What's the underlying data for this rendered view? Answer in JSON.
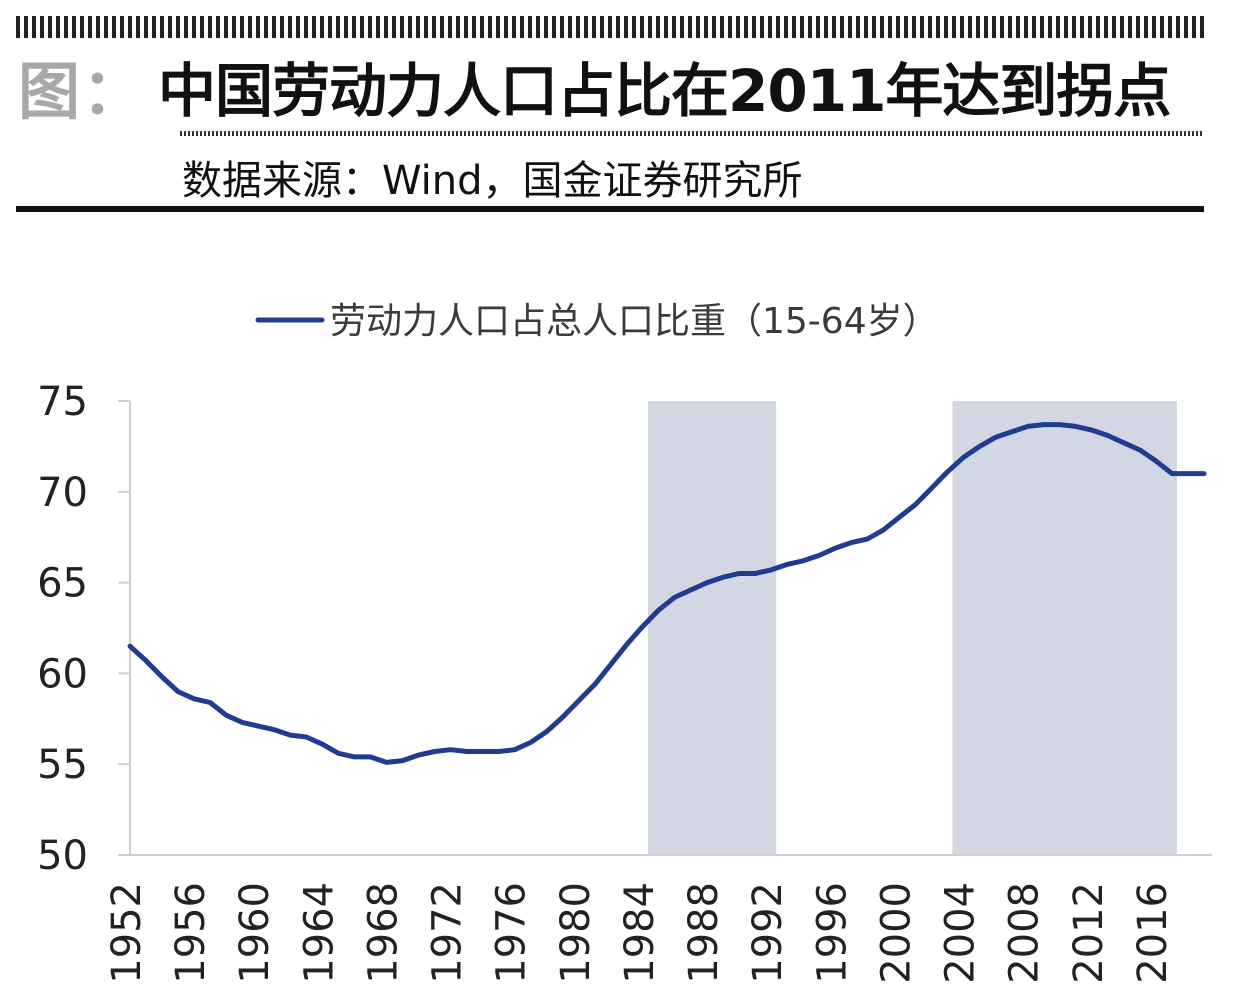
{
  "header": {
    "fig_label": "图：",
    "title": "中国劳动力人口占比在2011年达到拐点",
    "source": "数据来源：Wind，国金证券研究所"
  },
  "colors": {
    "line": "#1f3c91",
    "shade": "#d3d6e3",
    "axis": "#cfcfcf"
  },
  "chart_data": {
    "type": "line",
    "title": "",
    "xlabel": "",
    "ylabel": "",
    "legend": "top-center",
    "ylim": [
      50,
      75
    ],
    "xlim": [
      1952,
      2019
    ],
    "yticks": [
      "75",
      "70",
      "65",
      "60",
      "55",
      "50"
    ],
    "xticks": [
      "1952",
      "1956",
      "1960",
      "1964",
      "1968",
      "1972",
      "1976",
      "1980",
      "1984",
      "1988",
      "1992",
      "1996",
      "2000",
      "2004",
      "2008",
      "2012",
      "2016"
    ],
    "shaded_ranges": [
      [
        1984,
        1992
      ],
      [
        2003,
        2017
      ]
    ],
    "series": [
      {
        "name": "劳动力人口占总人口比重（15-64岁）",
        "x": [
          1952,
          1953,
          1954,
          1955,
          1956,
          1957,
          1958,
          1959,
          1960,
          1961,
          1962,
          1963,
          1964,
          1965,
          1966,
          1967,
          1968,
          1969,
          1970,
          1971,
          1972,
          1973,
          1974,
          1975,
          1976,
          1977,
          1978,
          1979,
          1980,
          1981,
          1982,
          1983,
          1984,
          1985,
          1986,
          1987,
          1988,
          1989,
          1990,
          1991,
          1992,
          1993,
          1994,
          1995,
          1996,
          1997,
          1998,
          1999,
          2000,
          2001,
          2002,
          2003,
          2004,
          2005,
          2006,
          2007,
          2008,
          2009,
          2010,
          2011,
          2012,
          2013,
          2014,
          2015,
          2016,
          2017,
          2018,
          2019
        ],
        "values": [
          61.5,
          60.7,
          59.8,
          59.0,
          58.6,
          58.4,
          57.7,
          57.3,
          57.1,
          56.9,
          56.6,
          56.5,
          56.1,
          55.6,
          55.4,
          55.4,
          55.1,
          55.2,
          55.5,
          55.7,
          55.8,
          55.7,
          55.7,
          55.7,
          55.8,
          56.2,
          56.8,
          57.6,
          58.5,
          59.4,
          60.5,
          61.6,
          62.6,
          63.5,
          64.2,
          64.6,
          65.0,
          65.3,
          65.5,
          65.5,
          65.7,
          66.0,
          66.2,
          66.5,
          66.9,
          67.2,
          67.4,
          67.9,
          68.6,
          69.3,
          70.2,
          71.1,
          71.9,
          72.5,
          73.0,
          73.3,
          73.6,
          73.7,
          73.7,
          73.6,
          73.4,
          73.1,
          72.7,
          72.3,
          71.7,
          71.0,
          71.0,
          71.0
        ]
      }
    ]
  }
}
